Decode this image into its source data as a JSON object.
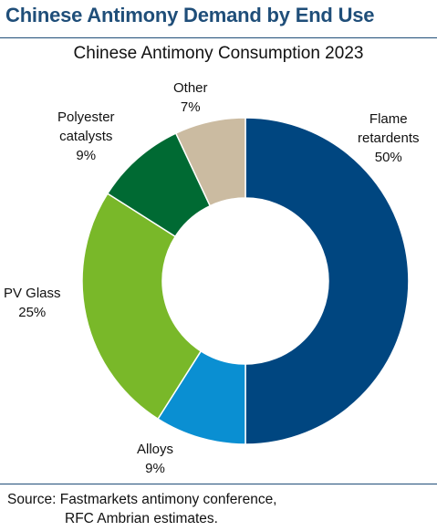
{
  "header": {
    "title": "Chinese Antimony Demand by End Use"
  },
  "chart_data": {
    "type": "pie",
    "donut": true,
    "title": "Chinese Antimony Consumption 2023",
    "start_angle_deg": 0,
    "direction": "clockwise",
    "slices": [
      {
        "label_lines": [
          "Flame",
          "retardents"
        ],
        "value": 50,
        "value_label": "50%",
        "color": "#004680"
      },
      {
        "label_lines": [
          "Alloys"
        ],
        "value": 9,
        "value_label": "9%",
        "color": "#0a8fd2"
      },
      {
        "label_lines": [
          "PV Glass"
        ],
        "value": 25,
        "value_label": "25%",
        "color": "#79b829"
      },
      {
        "label_lines": [
          "Polyester",
          "catalysts"
        ],
        "value": 9,
        "value_label": "9%",
        "color": "#006a33"
      },
      {
        "label_lines": [
          "Other"
        ],
        "value": 7,
        "value_label": "7%",
        "color": "#cbbba1"
      }
    ]
  },
  "source": {
    "line1": "Source: Fastmarkets antimony conference,",
    "line2": "RFC Ambrian estimates."
  }
}
